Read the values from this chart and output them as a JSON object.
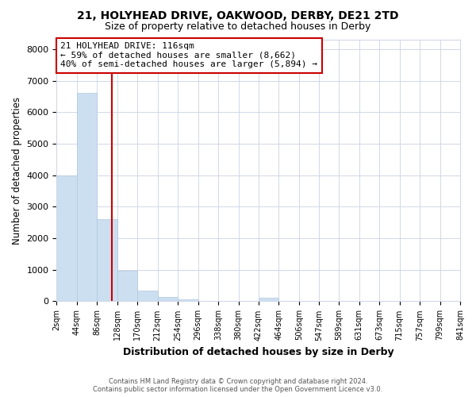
{
  "title1": "21, HOLYHEAD DRIVE, OAKWOOD, DERBY, DE21 2TD",
  "title2": "Size of property relative to detached houses in Derby",
  "xlabel": "Distribution of detached houses by size in Derby",
  "ylabel": "Number of detached properties",
  "footer1": "Contains HM Land Registry data © Crown copyright and database right 2024.",
  "footer2": "Contains public sector information licensed under the Open Government Licence v3.0.",
  "annotation_line1": "21 HOLYHEAD DRIVE: 116sqm",
  "annotation_line2": "← 59% of detached houses are smaller (8,662)",
  "annotation_line3": "40% of semi-detached houses are larger (5,894) →",
  "property_size": 116,
  "bin_edges": [
    2,
    44,
    86,
    128,
    170,
    212,
    254,
    296,
    338,
    380,
    422,
    464,
    506,
    547,
    589,
    631,
    673,
    715,
    757,
    799,
    841
  ],
  "bar_values": [
    4000,
    6600,
    2600,
    960,
    330,
    140,
    60,
    0,
    0,
    0,
    100,
    0,
    0,
    0,
    0,
    0,
    0,
    0,
    0,
    0
  ],
  "bar_color": "#ccdff0",
  "bar_edge_color": "#b0c8e0",
  "highlight_line_color": "#cc0000",
  "ylim": [
    0,
    8300
  ],
  "yticks": [
    0,
    1000,
    2000,
    3000,
    4000,
    5000,
    6000,
    7000,
    8000
  ],
  "bg_color": "#ffffff",
  "grid_color": "#d0d8e8",
  "annot_box_color": "#ffffff",
  "annot_box_edge": "#cc0000"
}
